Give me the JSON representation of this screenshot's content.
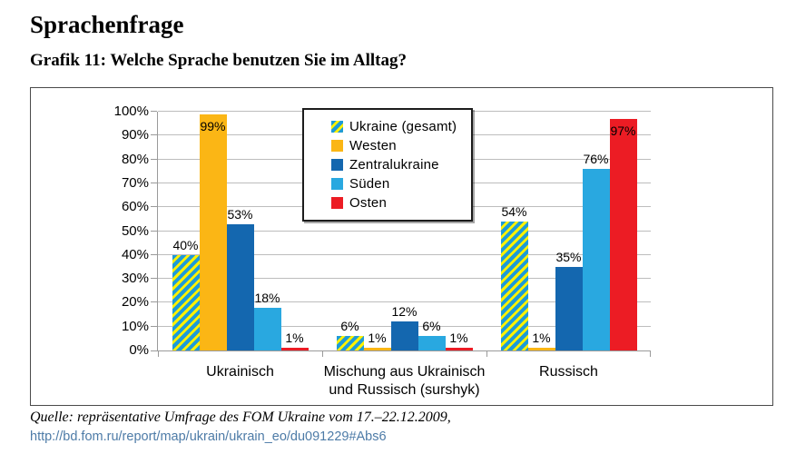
{
  "page": {
    "title": "Sprachenfrage",
    "subtitle": "Grafik 11: Welche Sprache benutzen Sie im Alltag?"
  },
  "chart_data": {
    "type": "bar",
    "title": "",
    "categories": [
      "Ukrainisch",
      "Mischung aus Ukrainisch\nund Russisch (surshyk)",
      "Russisch"
    ],
    "series": [
      {
        "name": "Ukraine (gesamt)",
        "values": [
          40,
          6,
          54
        ],
        "fill": "diagonal-stripes",
        "stripe_colors": [
          "#1E9BD7",
          "#FFF200"
        ]
      },
      {
        "name": "Westen",
        "values": [
          99,
          1,
          1
        ],
        "color": "#FBB615"
      },
      {
        "name": "Zentralukraine",
        "values": [
          53,
          12,
          35
        ],
        "color": "#1467AF"
      },
      {
        "name": "Süden",
        "values": [
          18,
          6,
          76
        ],
        "color": "#29A8E0"
      },
      {
        "name": "Osten",
        "values": [
          1,
          1,
          97
        ],
        "color": "#EC1C24"
      }
    ],
    "xlabel": "",
    "ylabel": "",
    "ylim": [
      0,
      100
    ],
    "ytick_step": 10,
    "ytick_suffix": "%",
    "grid": true,
    "gridline_color": "#bdbdbd",
    "axis_color": "#9a9a9a",
    "legend_position": "inside-top-center",
    "value_label_suffix": "%",
    "value_labels_note": "labels above bars; drawn inside bar top when value >= 95"
  },
  "footer": {
    "source": "Quelle: repräsentative Umfrage des FOM Ukraine vom 17.–22.12.2009,",
    "link": "http://bd.fom.ru/report/map/ukrain/ukrain_eo/du091229#Abs6",
    "link_color": "#4D7BA7"
  }
}
